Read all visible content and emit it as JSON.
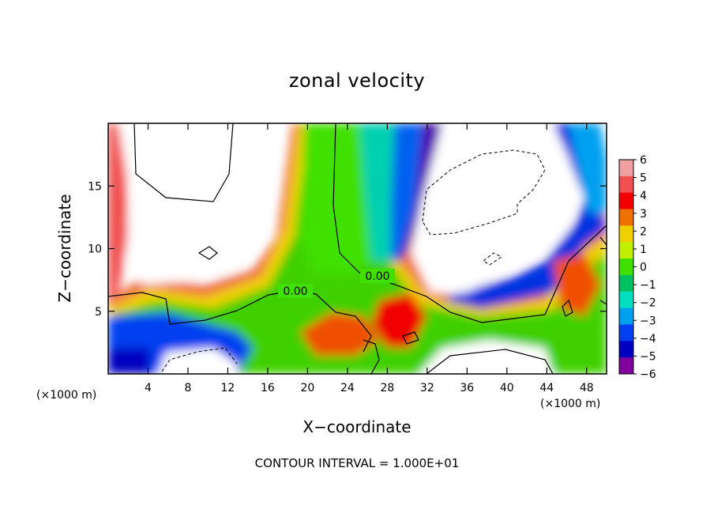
{
  "chart_data": {
    "type": "heatmap",
    "title": "zonal velocity",
    "xlabel": "X−coordinate",
    "ylabel": "Z−coordinate",
    "x_unit": "(×1000 m)",
    "xlim": [
      0,
      50
    ],
    "ylim": [
      0,
      20
    ],
    "x_ticks": [
      4,
      8,
      12,
      16,
      20,
      24,
      28,
      32,
      36,
      40,
      44,
      48
    ],
    "y_ticks": [
      5,
      10,
      15
    ],
    "colorbar": {
      "ticks": [
        6,
        5,
        4,
        3,
        2,
        1,
        0,
        -1,
        -2,
        -3,
        -4,
        -5,
        -6
      ],
      "tick_labels": [
        "6",
        "5",
        "4",
        "3",
        "2",
        "1",
        "0",
        "−1",
        "−2",
        "−3",
        "−4",
        "−5",
        "−6"
      ],
      "colors": [
        "#f0a0a0",
        "#f05050",
        "#f00000",
        "#f07000",
        "#f0d000",
        "#c0f000",
        "#40e000",
        "#00c060",
        "#00e0c0",
        "#00a0f0",
        "#0040f0",
        "#0000c0",
        "#8000a0"
      ]
    },
    "contour_labels": [
      "0.00",
      "0.00"
    ],
    "contour_interval_label": "CONTOUR INTERVAL =  1.000E+01"
  }
}
